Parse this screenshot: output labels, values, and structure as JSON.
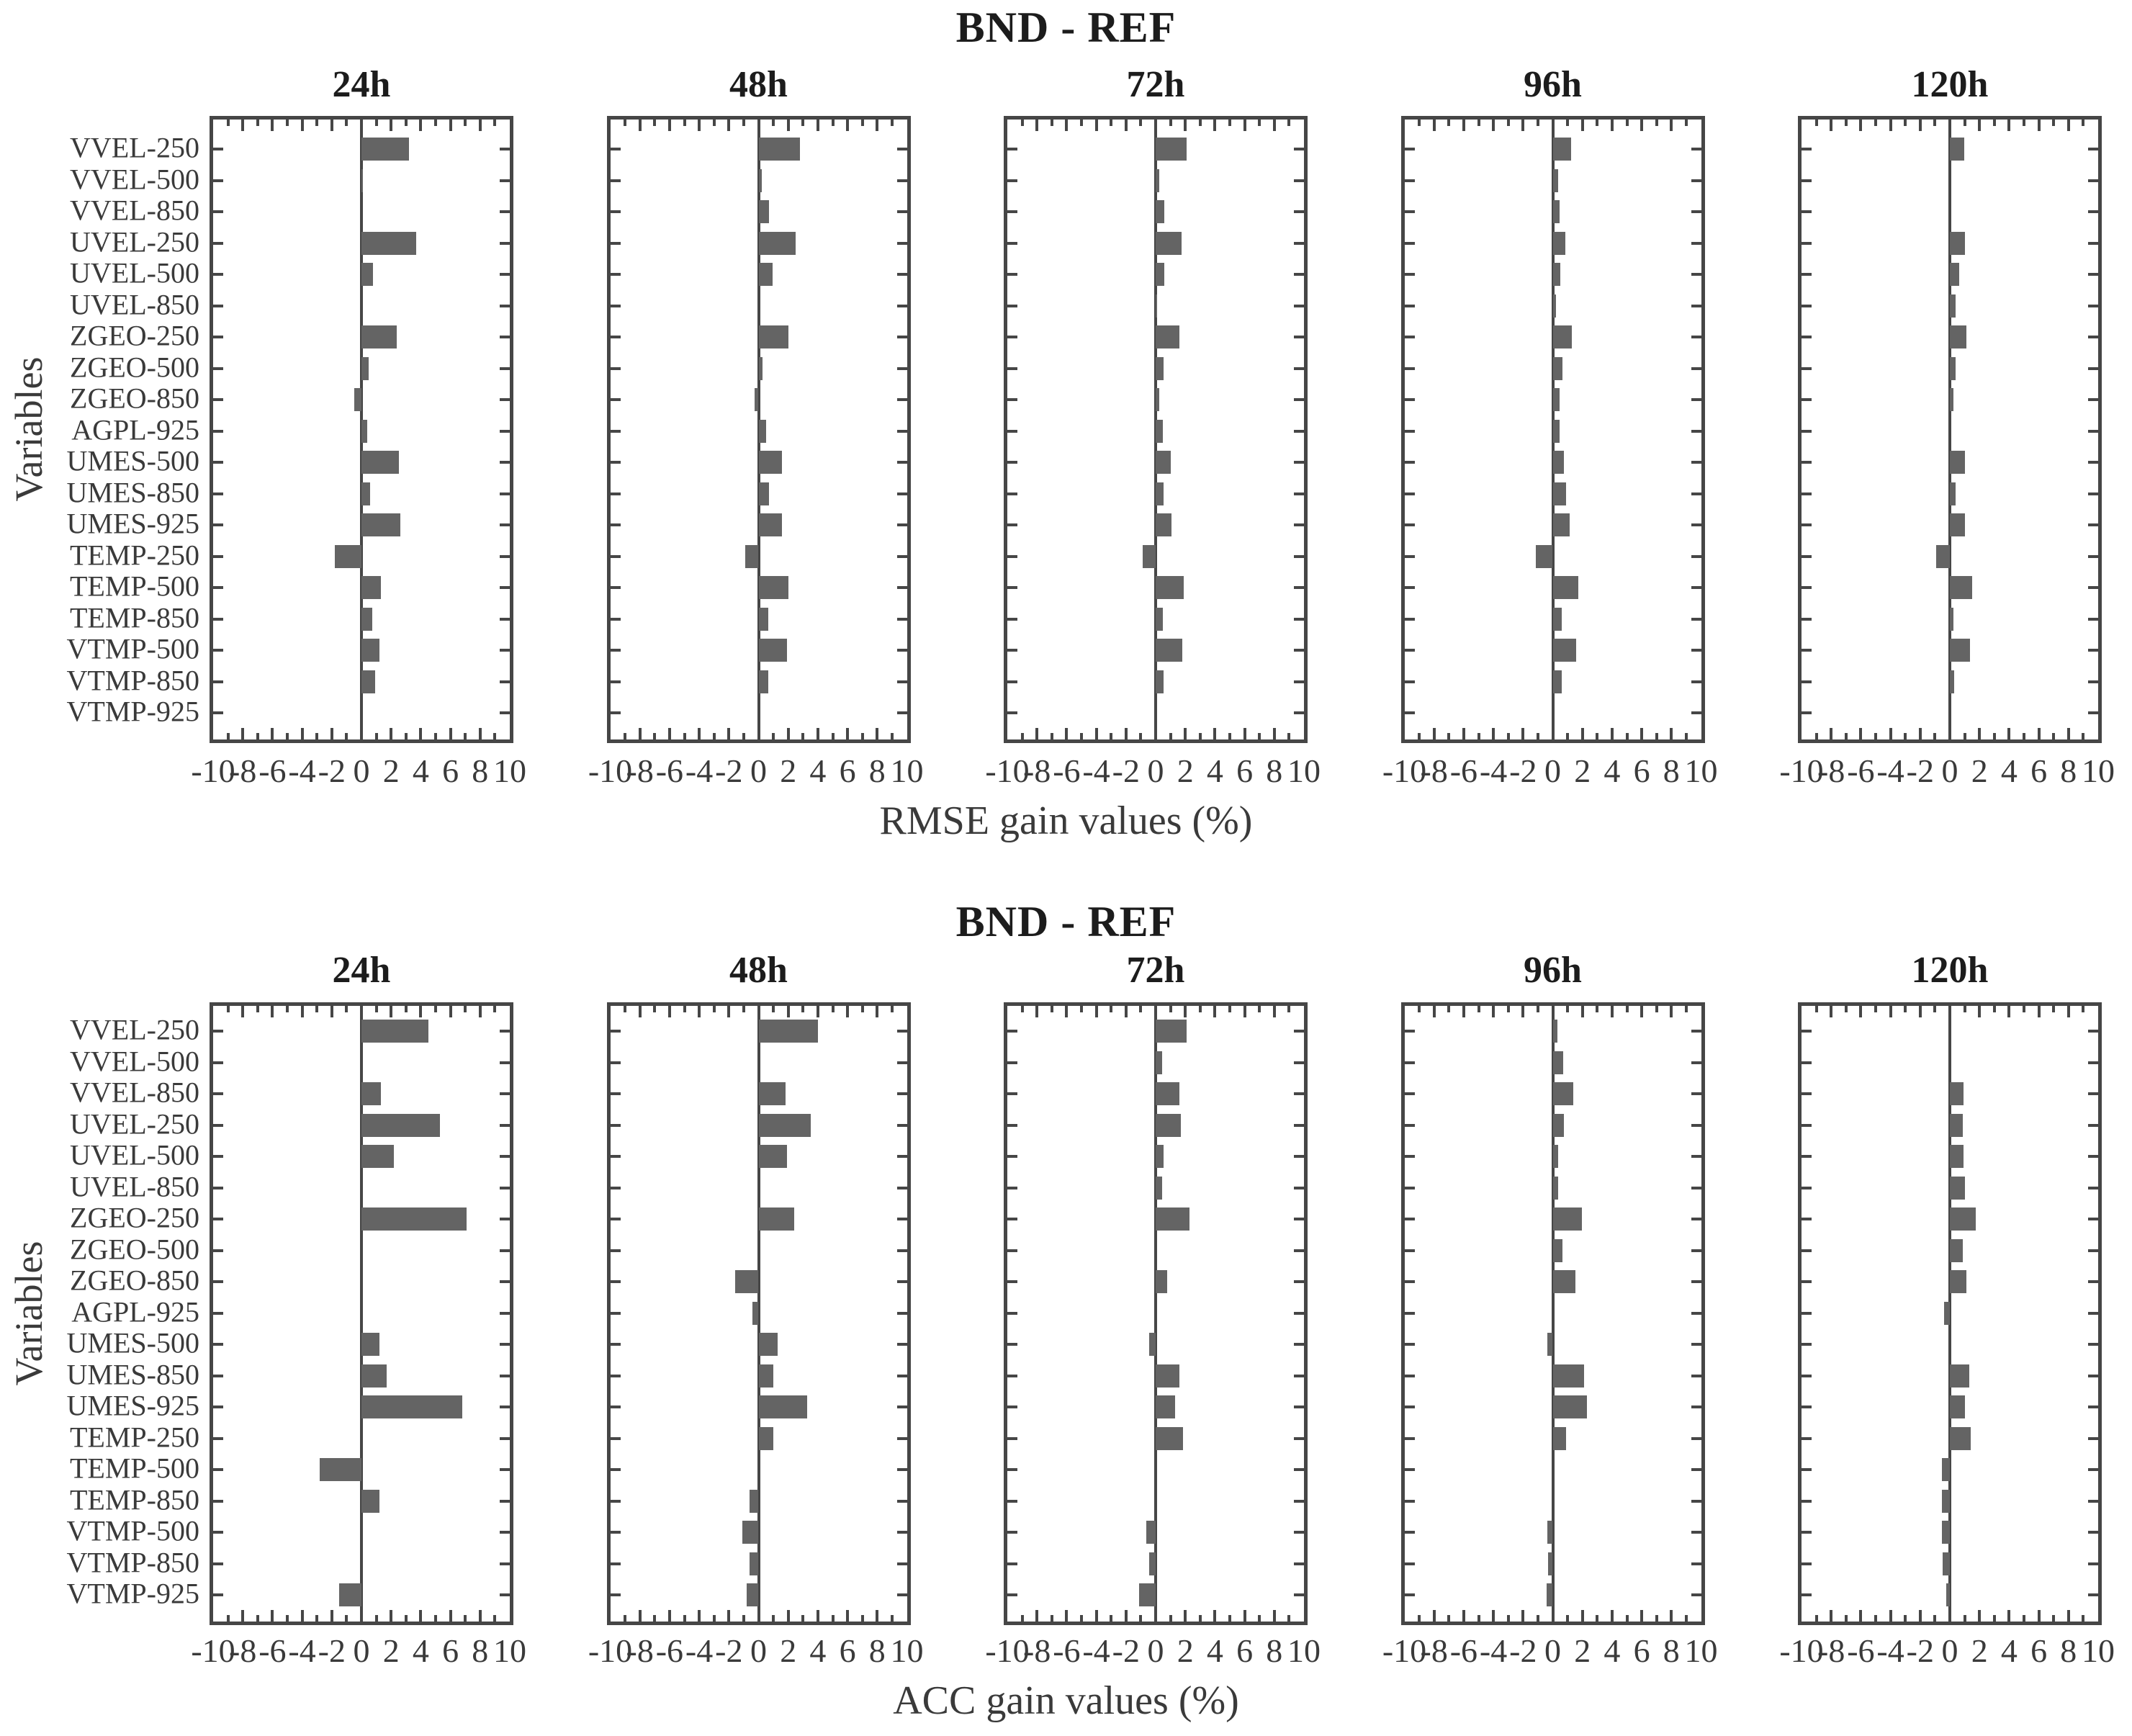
{
  "colors": {
    "bar": "#646464",
    "axis": "#464646",
    "text": "#3a3a3a",
    "title": "#1c1c1c",
    "background": "#ffffff"
  },
  "chart_data": [
    {
      "type": "bar",
      "orientation": "horizontal",
      "title": "BND - REF",
      "xlabel": "RMSE gain values (%)",
      "ylabel": "Variables",
      "xlim": [
        -10,
        10
      ],
      "xticks": [
        -10,
        -8,
        -6,
        -4,
        -2,
        0,
        2,
        4,
        6,
        8,
        10
      ],
      "grid": false,
      "legend": "none",
      "categories": [
        "VVEL-250",
        "VVEL-500",
        "VVEL-850",
        "UVEL-250",
        "UVEL-500",
        "UVEL-850",
        "ZGEO-250",
        "ZGEO-500",
        "ZGEO-850",
        "AGPL-925",
        "UMES-500",
        "UMES-850",
        "UMES-925",
        "TEMP-250",
        "TEMP-500",
        "TEMP-850",
        "VTMP-500",
        "VTMP-850",
        "VTMP-925"
      ],
      "series": [
        {
          "name": "24h",
          "values": [
            3.2,
            0.1,
            0.0,
            3.7,
            0.8,
            0.0,
            2.4,
            0.5,
            -0.5,
            0.4,
            2.5,
            0.6,
            2.6,
            -1.8,
            1.3,
            0.75,
            1.2,
            0.9,
            0.0
          ]
        },
        {
          "name": "48h",
          "values": [
            2.8,
            0.2,
            0.7,
            2.5,
            0.95,
            0.0,
            2.0,
            0.25,
            -0.25,
            0.5,
            1.6,
            0.7,
            1.6,
            -0.9,
            2.0,
            0.65,
            1.9,
            0.65,
            0.0
          ]
        },
        {
          "name": "72h",
          "values": [
            2.1,
            0.25,
            0.6,
            1.75,
            0.6,
            0.1,
            1.6,
            0.55,
            0.25,
            0.5,
            1.0,
            0.55,
            1.05,
            -0.85,
            1.9,
            0.5,
            1.8,
            0.55,
            0.0
          ]
        },
        {
          "name": "96h",
          "values": [
            1.25,
            0.35,
            0.45,
            0.85,
            0.5,
            0.2,
            1.3,
            0.65,
            0.45,
            0.45,
            0.75,
            0.9,
            1.15,
            -1.15,
            1.7,
            0.6,
            1.6,
            0.6,
            0.0
          ]
        },
        {
          "name": "120h",
          "values": [
            0.95,
            0.0,
            0.0,
            1.0,
            0.65,
            0.4,
            1.1,
            0.4,
            0.25,
            0.0,
            1.0,
            0.4,
            1.0,
            -0.9,
            1.5,
            0.25,
            1.35,
            0.3,
            0.0
          ]
        }
      ]
    },
    {
      "type": "bar",
      "orientation": "horizontal",
      "title": "BND - REF",
      "xlabel": "ACC gain values (%)",
      "ylabel": "Variables",
      "xlim": [
        -10,
        10
      ],
      "xticks": [
        -10,
        -8,
        -6,
        -4,
        -2,
        0,
        2,
        4,
        6,
        8,
        10
      ],
      "grid": false,
      "legend": "none",
      "categories": [
        "VVEL-250",
        "VVEL-500",
        "VVEL-850",
        "UVEL-250",
        "UVEL-500",
        "UVEL-850",
        "ZGEO-250",
        "ZGEO-500",
        "ZGEO-850",
        "AGPL-925",
        "UMES-500",
        "UMES-850",
        "UMES-925",
        "TEMP-250",
        "TEMP-500",
        "TEMP-850",
        "VTMP-500",
        "VTMP-850",
        "VTMP-925"
      ],
      "series": [
        {
          "name": "24h",
          "values": [
            4.5,
            0.0,
            1.3,
            5.3,
            2.2,
            0.0,
            7.1,
            0.0,
            0.0,
            0.0,
            1.2,
            1.7,
            6.8,
            0.0,
            -2.8,
            1.2,
            0.0,
            0.0,
            -1.5
          ]
        },
        {
          "name": "48h",
          "values": [
            4.0,
            0.0,
            1.8,
            3.5,
            1.9,
            0.0,
            2.4,
            0.0,
            -1.6,
            -0.4,
            1.3,
            1.0,
            3.3,
            1.0,
            0.0,
            -0.6,
            -1.1,
            -0.6,
            -0.8
          ]
        },
        {
          "name": "72h",
          "values": [
            2.1,
            0.45,
            1.6,
            1.7,
            0.55,
            0.45,
            2.3,
            0.0,
            0.8,
            0.0,
            -0.45,
            1.6,
            1.3,
            1.85,
            0.0,
            0.0,
            -0.65,
            -0.45,
            -1.1
          ]
        },
        {
          "name": "96h",
          "values": [
            0.3,
            0.7,
            1.4,
            0.75,
            0.35,
            0.35,
            1.95,
            0.65,
            1.55,
            0.0,
            -0.35,
            2.1,
            2.3,
            0.9,
            0.0,
            0.0,
            -0.35,
            -0.3,
            -0.4
          ]
        },
        {
          "name": "120h",
          "values": [
            0.0,
            0.0,
            0.9,
            0.85,
            0.9,
            1.0,
            1.75,
            0.85,
            1.1,
            -0.4,
            0.0,
            1.3,
            1.0,
            1.4,
            -0.55,
            -0.55,
            -0.55,
            -0.5,
            -0.25
          ]
        }
      ]
    }
  ]
}
